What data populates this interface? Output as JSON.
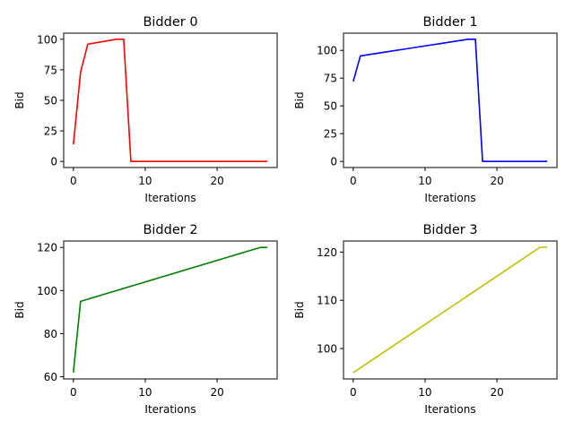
{
  "chart_data": [
    {
      "type": "line",
      "title": "Bidder 0",
      "xlabel": "Iterations",
      "ylabel": "Bid",
      "xlim": [
        -1.35,
        28.35
      ],
      "ylim": [
        -5,
        105
      ],
      "xticks": [
        0,
        10,
        20
      ],
      "yticks": [
        0,
        25,
        50,
        75,
        100
      ],
      "grid": false,
      "color": "#ff0000",
      "x": [
        0,
        1,
        2,
        3,
        4,
        5,
        6,
        7,
        8,
        9,
        10,
        11,
        12,
        13,
        14,
        15,
        16,
        17,
        18,
        19,
        20,
        21,
        22,
        23,
        24,
        25,
        26,
        27
      ],
      "y": [
        14,
        73,
        96,
        97,
        98,
        99,
        100,
        100,
        0,
        0,
        0,
        0,
        0,
        0,
        0,
        0,
        0,
        0,
        0,
        0,
        0,
        0,
        0,
        0,
        0,
        0,
        0,
        0
      ]
    },
    {
      "type": "line",
      "title": "Bidder 1",
      "xlabel": "Iterations",
      "ylabel": "Bid",
      "xlim": [
        -1.35,
        28.35
      ],
      "ylim": [
        -5.5,
        115.5
      ],
      "xticks": [
        0,
        10,
        20
      ],
      "yticks": [
        0,
        25,
        50,
        75,
        100
      ],
      "grid": false,
      "color": "#0000ff",
      "x": [
        0,
        1,
        2,
        3,
        4,
        5,
        6,
        7,
        8,
        9,
        10,
        11,
        12,
        13,
        14,
        15,
        16,
        17,
        18,
        19,
        20,
        21,
        22,
        23,
        24,
        25,
        26,
        27
      ],
      "y": [
        72,
        95,
        96,
        97,
        98,
        99,
        100,
        101,
        102,
        103,
        104,
        105,
        106,
        107,
        108,
        109,
        110,
        110,
        0,
        0,
        0,
        0,
        0,
        0,
        0,
        0,
        0,
        0
      ]
    },
    {
      "type": "line",
      "title": "Bidder 2",
      "xlabel": "Iterations",
      "ylabel": "Bid",
      "xlim": [
        -1.35,
        28.35
      ],
      "ylim": [
        59,
        123
      ],
      "xticks": [
        0,
        10,
        20
      ],
      "yticks": [
        60,
        80,
        100,
        120
      ],
      "grid": false,
      "color": "#008000",
      "x": [
        0,
        1,
        2,
        3,
        4,
        5,
        6,
        7,
        8,
        9,
        10,
        11,
        12,
        13,
        14,
        15,
        16,
        17,
        18,
        19,
        20,
        21,
        22,
        23,
        24,
        25,
        26,
        27
      ],
      "y": [
        62,
        95,
        96,
        97,
        98,
        99,
        100,
        101,
        102,
        103,
        104,
        105,
        106,
        107,
        108,
        109,
        110,
        111,
        112,
        113,
        114,
        115,
        116,
        117,
        118,
        119,
        120,
        120
      ]
    },
    {
      "type": "line",
      "title": "Bidder 3",
      "xlabel": "Iterations",
      "ylabel": "Bid",
      "xlim": [
        -1.35,
        28.35
      ],
      "ylim": [
        93.7,
        122.3
      ],
      "xticks": [
        0,
        10,
        20
      ],
      "yticks": [
        100,
        110,
        120
      ],
      "grid": false,
      "color": "#bfbf00",
      "x": [
        0,
        1,
        2,
        3,
        4,
        5,
        6,
        7,
        8,
        9,
        10,
        11,
        12,
        13,
        14,
        15,
        16,
        17,
        18,
        19,
        20,
        21,
        22,
        23,
        24,
        25,
        26,
        27
      ],
      "y": [
        95,
        96,
        97,
        98,
        99,
        100,
        101,
        102,
        103,
        104,
        105,
        106,
        107,
        108,
        109,
        110,
        111,
        112,
        113,
        114,
        115,
        116,
        117,
        118,
        119,
        120,
        121,
        121
      ]
    }
  ]
}
